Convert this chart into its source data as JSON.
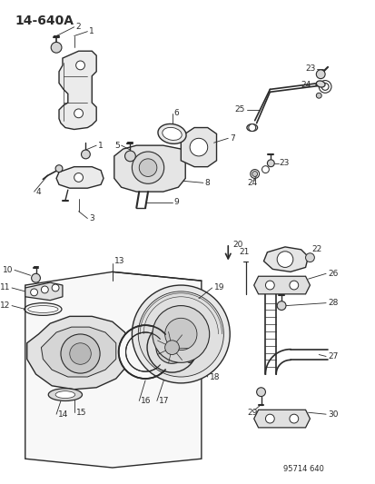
{
  "title": "14-640A",
  "watermark": "95714 640",
  "bg": "#ffffff",
  "lc": "#2a2a2a",
  "fig_w": 4.14,
  "fig_h": 5.33,
  "dpi": 100
}
